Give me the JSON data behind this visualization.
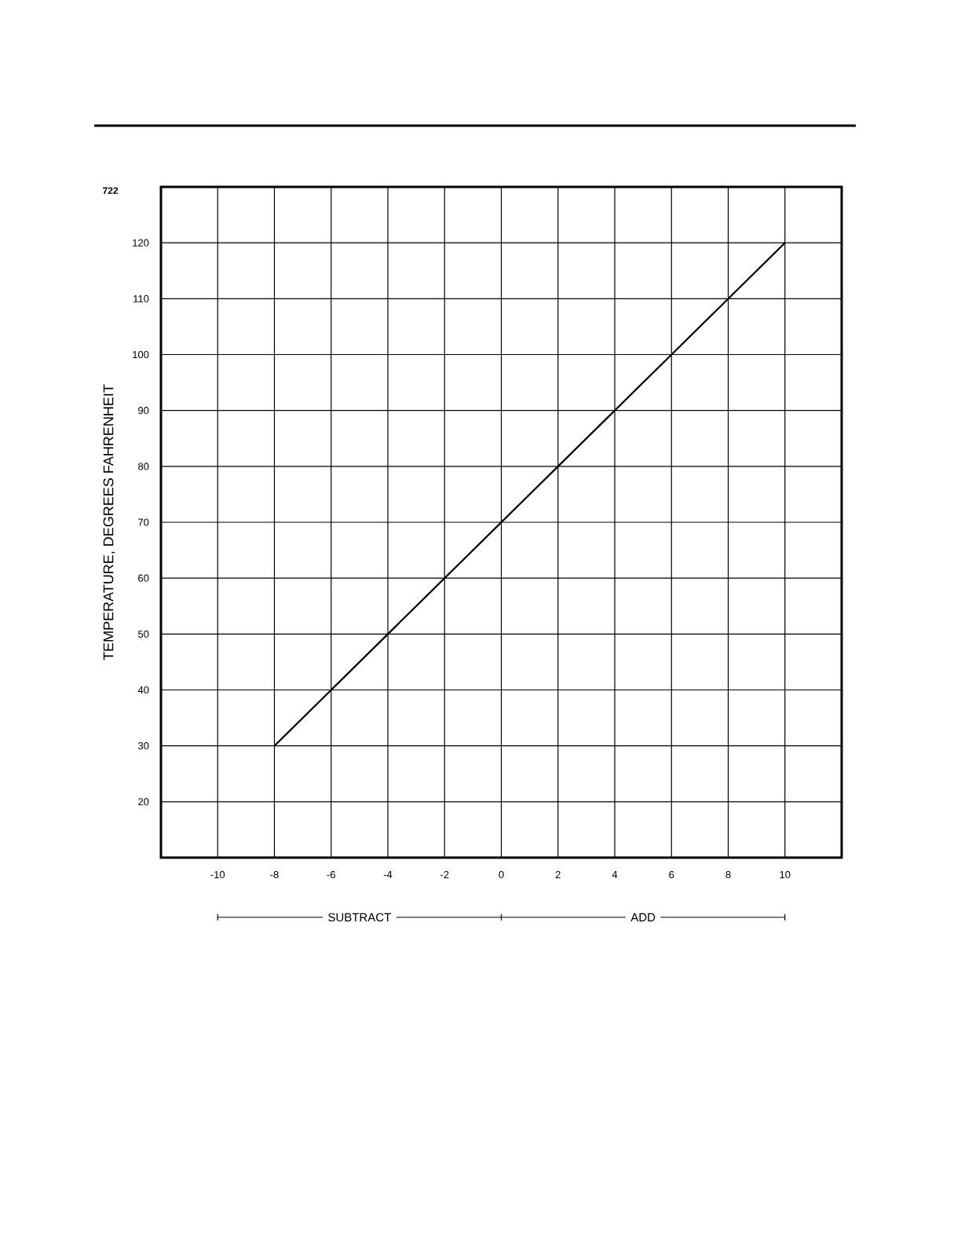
{
  "chart_data": {
    "type": "line",
    "ylabel": "TEMPERATURE, DEGREES FAHRENHEIT",
    "annotations": [
      "722",
      "SUBTRACT",
      "ADD"
    ],
    "x": [
      -8,
      10
    ],
    "series": [
      {
        "color": "#000000",
        "values": [
          30,
          120
        ]
      }
    ],
    "xlim": [
      -12,
      12
    ],
    "ylim": [
      10,
      130
    ],
    "xticks": [
      -10,
      {
        "value": -8,
        "label": "-8"
      },
      -6,
      -4,
      -2,
      0,
      2,
      4,
      6,
      8,
      10
    ],
    "yticks": [
      20,
      30,
      40,
      50,
      60,
      70,
      80,
      90,
      100,
      110,
      120
    ],
    "grid": true,
    "marker": "none",
    "line_style": "solid"
  }
}
